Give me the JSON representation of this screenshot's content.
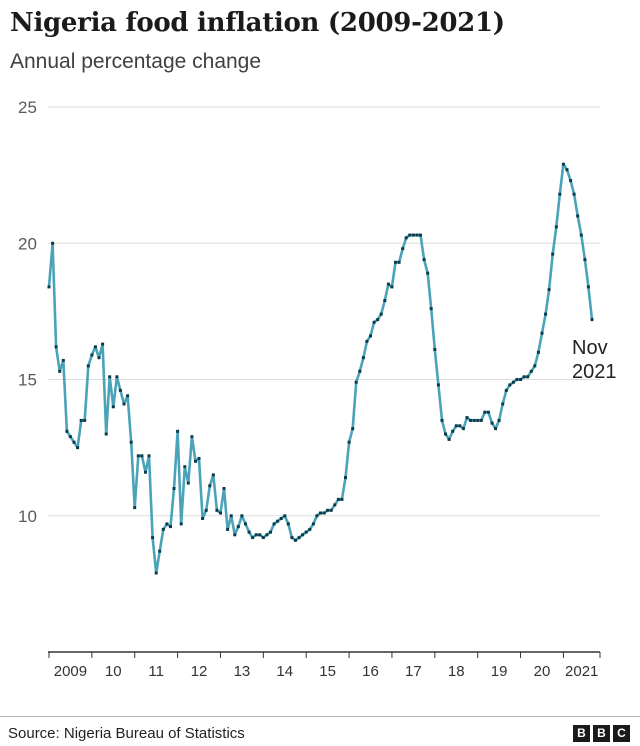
{
  "chart_data": {
    "type": "line",
    "title": "Nigeria food inflation (2009-2021)",
    "subtitle": "Annual percentage change",
    "xlabel": "",
    "ylabel": "",
    "ylim": [
      5,
      25
    ],
    "yticks": [
      10,
      15,
      20,
      25
    ],
    "grid": true,
    "xtick_labels": [
      "2009",
      "10",
      "11",
      "12",
      "13",
      "14",
      "15",
      "16",
      "17",
      "18",
      "19",
      "20",
      "2021"
    ],
    "annotation": {
      "line1": "Nov",
      "line2": "2021"
    },
    "series": [
      {
        "name": "Food inflation",
        "color": "#4aa3b8",
        "marker_color": "#0b3b4a",
        "start": "2009-01",
        "end": "2021-11",
        "values": [
          18.4,
          20.0,
          16.2,
          15.3,
          15.7,
          13.1,
          12.9,
          12.7,
          12.5,
          13.5,
          13.5,
          15.5,
          15.9,
          16.2,
          15.8,
          16.3,
          13.0,
          15.1,
          14.0,
          15.1,
          14.6,
          14.1,
          14.4,
          12.7,
          10.3,
          12.2,
          12.2,
          11.6,
          12.2,
          9.2,
          7.9,
          8.7,
          9.5,
          9.7,
          9.6,
          11.0,
          13.1,
          9.7,
          11.8,
          11.2,
          12.9,
          12.0,
          12.1,
          9.9,
          10.2,
          11.1,
          11.5,
          10.2,
          10.1,
          11.0,
          9.5,
          10.0,
          9.3,
          9.6,
          10.0,
          9.7,
          9.4,
          9.2,
          9.3,
          9.3,
          9.2,
          9.3,
          9.4,
          9.7,
          9.8,
          9.9,
          10.0,
          9.7,
          9.2,
          9.1,
          9.2,
          9.3,
          9.4,
          9.5,
          9.7,
          10.0,
          10.1,
          10.1,
          10.2,
          10.2,
          10.4,
          10.6,
          10.6,
          11.4,
          12.7,
          13.2,
          14.9,
          15.3,
          15.8,
          16.4,
          16.6,
          17.1,
          17.2,
          17.4,
          17.9,
          18.5,
          18.4,
          19.3,
          19.3,
          19.8,
          20.2,
          20.3,
          20.3,
          20.3,
          20.3,
          19.4,
          18.9,
          17.6,
          16.1,
          14.8,
          13.5,
          13.0,
          12.8,
          13.1,
          13.3,
          13.3,
          13.2,
          13.6,
          13.5,
          13.5,
          13.5,
          13.5,
          13.8,
          13.8,
          13.4,
          13.2,
          13.5,
          14.1,
          14.6,
          14.8,
          14.9,
          15.0,
          15.0,
          15.1,
          15.1,
          15.3,
          15.5,
          16.0,
          16.7,
          17.4,
          18.3,
          19.6,
          20.6,
          21.8,
          22.9,
          22.7,
          22.3,
          21.8,
          21.0,
          20.3,
          19.4,
          18.4,
          17.2
        ]
      }
    ]
  },
  "source_text": "Source: Nigeria Bureau of Statistics",
  "logo": {
    "letters": [
      "B",
      "B",
      "C"
    ]
  }
}
